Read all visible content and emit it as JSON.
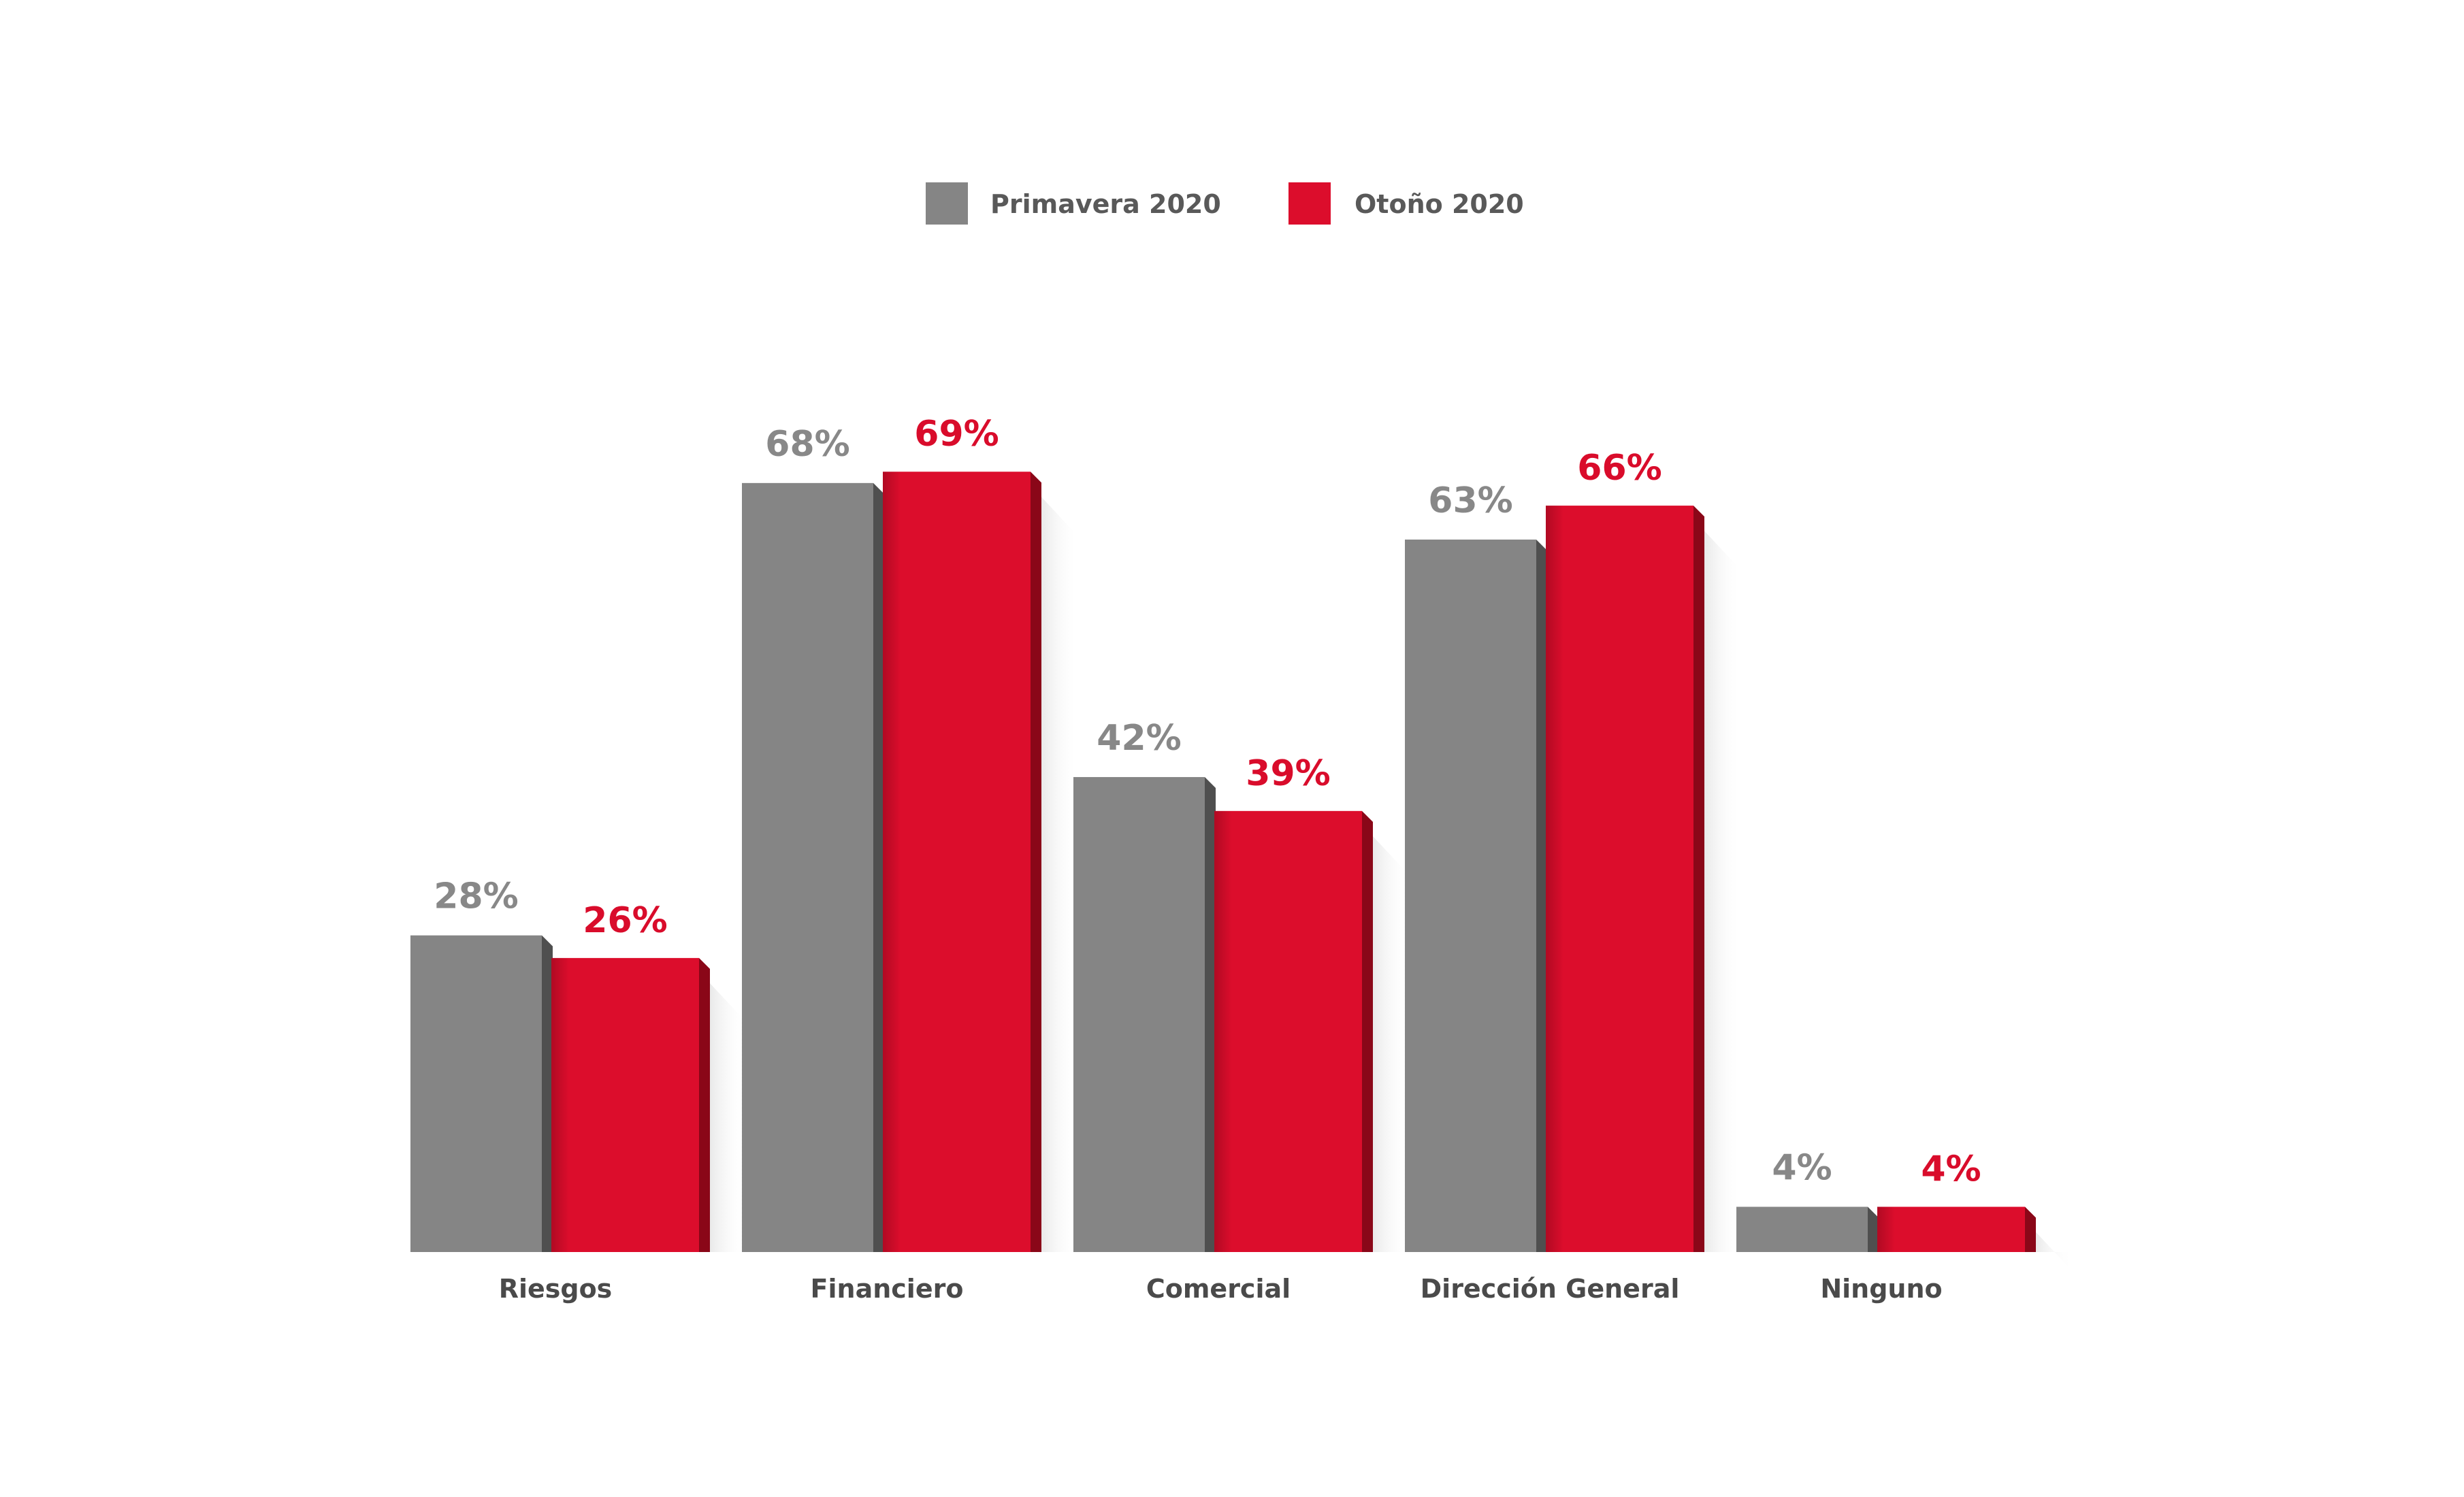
{
  "chart_data": {
    "type": "bar",
    "categories": [
      "Riesgos",
      "Financiero",
      "Comercial",
      "Dirección General",
      "Ninguno"
    ],
    "series": [
      {
        "name": "Primavera 2020",
        "color": "#858585",
        "values": [
          28,
          68,
          42,
          63,
          4
        ],
        "labels": [
          "28%",
          "68%",
          "42%",
          "63%",
          "4%"
        ]
      },
      {
        "name": "Otoño 2020",
        "color": "#dc0d2c",
        "values": [
          26,
          69,
          39,
          66,
          4
        ],
        "labels": [
          "26%",
          "69%",
          "39%",
          "66%",
          "4%"
        ]
      }
    ],
    "value_label_colors": [
      "#888888",
      "#d90c2b"
    ],
    "ylim": [
      0,
      100
    ],
    "grid": false,
    "legend_position": "top-center",
    "title": "",
    "xlabel": "",
    "ylabel": ""
  }
}
